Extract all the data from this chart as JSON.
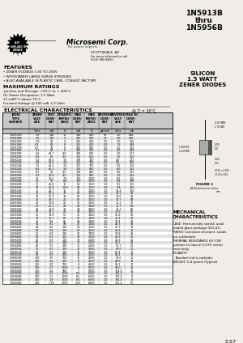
{
  "title_part": "1N5913B\nthru\n1N5956B",
  "company": "Microsemi Corp.",
  "company_sub": "The power experts",
  "location": "SCOTTSDALE, AZ",
  "location2": "For more information call",
  "location3": "(623) 580-6000",
  "features_title": "FEATURES",
  "features": [
    "• ZENER VOLTAGE 3.3V TO 200V",
    "• WITHSTANDS LARGE SURGE STRESSES",
    "• ALSO AVAILABLE IN PLASTIC CASE. CONSULT FACTORY."
  ],
  "max_ratings_title": "MAXIMUM RATINGS",
  "max_ratings": [
    "Junction and Storage: −55°C to + 200°C",
    "DC Power Dissipation: 1.5 Watt",
    "12 mW/°C above 75°C",
    "Forward Voltage @ 200 mA: 1.2 Volts"
  ],
  "table_title": "ELECTRICAL CHARACTERISTICS",
  "table_title2": "@ Tₗ = 30°C",
  "subtitle": "SILICON\n1.5 WATT\nZENER DIODES",
  "col_headers": [
    "JEDEC\nTYPE\nNUMBER",
    "ZENER\nVOLT-\nAGE\nVz",
    "TEST\nCUR-\nRENT\nIzT",
    "DYNAMIC\nIMPED-\nANCE\nZzT",
    "MAX\nCUR-\nRENT\nIzM",
    "MAX\nIMPED-\nANCE\nZzK",
    "REVERSE\nCUR-\nRENT\nIR",
    "REVERSE\nVOLT-\nAGE\nVR",
    "MAX DC\nCUR-\nRENT\nIzM"
  ],
  "col_units_top": [
    "",
    "Volts",
    "mA",
    "Ω",
    "mA",
    "Ω",
    "μA/mA",
    "Volts",
    "mA"
  ],
  "col_units_bot": [
    "",
    "Vz",
    "IzT",
    "ZzT",
    "IzM",
    "ZzK",
    "IR",
    "VR",
    "IzM"
  ],
  "table_data": [
    [
      "1N5913B",
      "3.3",
      "114",
      "10",
      "340",
      "400",
      "50",
      "1.0",
      "454"
    ],
    [
      "1N5914B",
      "3.6",
      "100",
      "9",
      "310",
      "400",
      "10",
      "1.0",
      "416"
    ],
    [
      "1N5915B",
      "3.9",
      "92",
      "9",
      "285",
      "400",
      "5.0",
      "1.0",
      "384"
    ],
    [
      "1N5916B",
      "4.3",
      "84",
      "8",
      "255",
      "400",
      "5.0",
      "1.5",
      "348"
    ],
    [
      "1N5917B",
      "4.7",
      "76",
      "8",
      "235",
      "500",
      "5.0",
      "2.0",
      "319"
    ],
    [
      "1N5918B",
      "5.1",
      "69",
      "6",
      "216",
      "550",
      "5.0",
      "2.0",
      "294"
    ],
    [
      "1N5919B",
      "5.6",
      "64.1",
      "4.0",
      "196",
      "600",
      "5.0",
      "3.0",
      "267"
    ],
    [
      "1N5920B",
      "6.0",
      "60",
      "4.5",
      "183",
      "600",
      "5.0",
      "3.5",
      "250"
    ],
    [
      "1N5921B",
      "6.2",
      "59.5",
      "3.5",
      "178",
      "700",
      "5.0",
      "4.0",
      "241"
    ],
    [
      "1N5922B",
      "6.8",
      "53.5",
      "3.0",
      "162",
      "700",
      "5.0",
      "4.5",
      "220"
    ],
    [
      "1N5923B",
      "7.5",
      "46.5",
      "3.5",
      "147",
      "700",
      "5.0",
      "5.0",
      "200"
    ],
    [
      "1N5924B",
      "8.2",
      "46.1",
      "3.0",
      "135",
      "800",
      "5.0",
      "6.0",
      "182"
    ],
    [
      "1N5925B",
      "8.7",
      "40",
      "4.5",
      "128",
      "900",
      "5.0",
      "6.5",
      "172"
    ],
    [
      "1N5926B",
      "9.1",
      "38.5",
      "4.5",
      "122",
      "900",
      "5.0",
      "7.0",
      "164"
    ],
    [
      "1N5927B",
      "10",
      "35.5",
      "7.0",
      "110",
      "1000",
      "5.0",
      "8.0",
      "150"
    ],
    [
      "1N5928B",
      "11",
      "32",
      "8.0",
      "100",
      "1000",
      "1.0",
      "8.4",
      "136"
    ],
    [
      "1N5929B",
      "12",
      "29.4",
      "11",
      "91",
      "1050",
      "1.0",
      "9.1",
      "125"
    ],
    [
      "1N5930B",
      "13",
      "27.4",
      "14.8",
      "84",
      "1050",
      "1.0",
      "9.9",
      "115"
    ],
    [
      "1N5931B",
      "15",
      "23.7",
      "16",
      "72",
      "1100",
      "1.0",
      "11.4",
      "100"
    ],
    [
      "1N5932B",
      "16",
      "22.2",
      "17",
      "68",
      "1100",
      "1.0",
      "12.2",
      "93"
    ],
    [
      "1N5933B",
      "17",
      "20.9",
      "19",
      "63",
      "1100",
      "1.0",
      "13.0",
      "88"
    ],
    [
      "1N5934B",
      "18",
      "19.7",
      "21",
      "60",
      "1150",
      "1.0",
      "13.7",
      "83"
    ],
    [
      "1N5935B",
      "20",
      "17.8",
      "25",
      "54",
      "1200",
      "1.0",
      "15.2",
      "75"
    ],
    [
      "1N5936B",
      "22",
      "16.1",
      "29",
      "49",
      "1300",
      "1.0",
      "16.7",
      "68"
    ],
    [
      "1N5937B",
      "24",
      "14.8",
      "33",
      "44",
      "1300",
      "1.0",
      "18.2",
      "62"
    ],
    [
      "1N5938B",
      "27",
      "13.1",
      "41",
      "39",
      "1350",
      "1.0",
      "20.6",
      "55"
    ],
    [
      "1N5939B",
      "30",
      "11.8",
      "52",
      "35",
      "1400",
      "1.0",
      "22.8",
      "50"
    ],
    [
      "1N5940B",
      "33",
      "10.7",
      "67",
      "32",
      "1400",
      "1.0",
      "25.1",
      "45"
    ],
    [
      "1N5941B",
      "36",
      "9.8",
      "80",
      "29",
      "1400",
      "1.0",
      "27.4",
      "41"
    ],
    [
      "1N5942B",
      "39",
      "9.1",
      "90",
      "27",
      "1500",
      "1.0",
      "29.7",
      "38"
    ],
    [
      "1N5943B",
      "43",
      "8.2",
      "110",
      "24",
      "1500",
      "1.0",
      "32.7",
      "34"
    ],
    [
      "1N5944B",
      "47",
      "7.5",
      "125",
      "22",
      "1600",
      "1.0",
      "35.8",
      "31"
    ],
    [
      "1N5945B",
      "51",
      "6.9",
      "135",
      "21",
      "1700",
      "1.0",
      "38.8",
      "29"
    ],
    [
      "1N5946B",
      "56",
      "6.3",
      "165",
      "19",
      "2000",
      "1.0",
      "42.6",
      "26"
    ],
    [
      "1N5947B",
      "60",
      "5.9",
      "185",
      "17",
      "2000",
      "1.0",
      "45.6",
      "25"
    ],
    [
      "1N5948B",
      "62",
      "5.7",
      "190",
      "17",
      "2000",
      "1.0",
      "47.1",
      "24"
    ],
    [
      "1N5949B",
      "68",
      "5.2",
      "230",
      "15",
      "2500",
      "1.0",
      "51.7",
      "22"
    ],
    [
      "1N5950B",
      "75",
      "4.7",
      "270",
      "14",
      "3000",
      "1.0",
      "57.0",
      "20"
    ],
    [
      "1N5951B",
      "82",
      "4.3",
      "330",
      "13",
      "3000",
      "1.0",
      "62.4",
      "18"
    ],
    [
      "1N5952B",
      "91",
      "3.9",
      "400",
      "11",
      "3500",
      "1.0",
      "69.2",
      "16"
    ],
    [
      "1N5953B",
      "100",
      "3.5",
      "500",
      "10",
      "4000",
      "1.0",
      "76.0",
      "15"
    ],
    [
      "1N5954B",
      "110",
      "3.2",
      "600",
      "9",
      "4500",
      "1.0",
      "83.6",
      "13"
    ],
    [
      "1N5955B",
      "120",
      "3.0",
      "700",
      "8",
      "4500",
      "1.0",
      "91.2",
      "12"
    ],
    [
      "1N5956B",
      "130",
      "2.7",
      "1200",
      "8",
      "5000",
      "1.0",
      "99.0",
      "11"
    ],
    [
      "1N5956B",
      "150",
      "2.4",
      "900",
      "7",
      "5000",
      "1.0",
      "121.6",
      "10"
    ],
    [
      "1N5956B",
      "160",
      "2.1",
      "1000",
      "6.5",
      "6000",
      "1.0",
      "126.0",
      "9"
    ],
    [
      "1N5956B",
      "170",
      "2.1",
      "1000",
      "6.5",
      "6000",
      "1.0",
      "129.4",
      "8"
    ],
    [
      "1N5956B",
      "180",
      "1.9",
      "1200",
      "6.0",
      "6000",
      "1.0",
      "134.4",
      "8"
    ],
    [
      "1N5956B",
      "200",
      "1.78",
      "1200",
      "5.25",
      "6000",
      "1.0",
      "151.4",
      "7.5"
    ]
  ],
  "mech_title": "MECHANICAL\nCHARACTERISTICS",
  "mech_text": [
    "CASE: Hermetically sealed, axial",
    "leaded glass package (DO-41).",
    "FINISH: Corrosion-resistant. Leads",
    "are solderable.",
    "THERMAL RESISTANCE 60°C/W",
    "junction to lead at 0.375 inches",
    "from body.",
    "POLARITY:",
    "   Banded end is cathode.",
    "WEIGHT: 0.4 grams (Typical)."
  ],
  "page_num": "5-57",
  "bg_color": "#f0ede8",
  "table_header_bg": "#c8c8c8",
  "table_row_even": "#ffffff",
  "table_row_odd": "#e0e0e0"
}
